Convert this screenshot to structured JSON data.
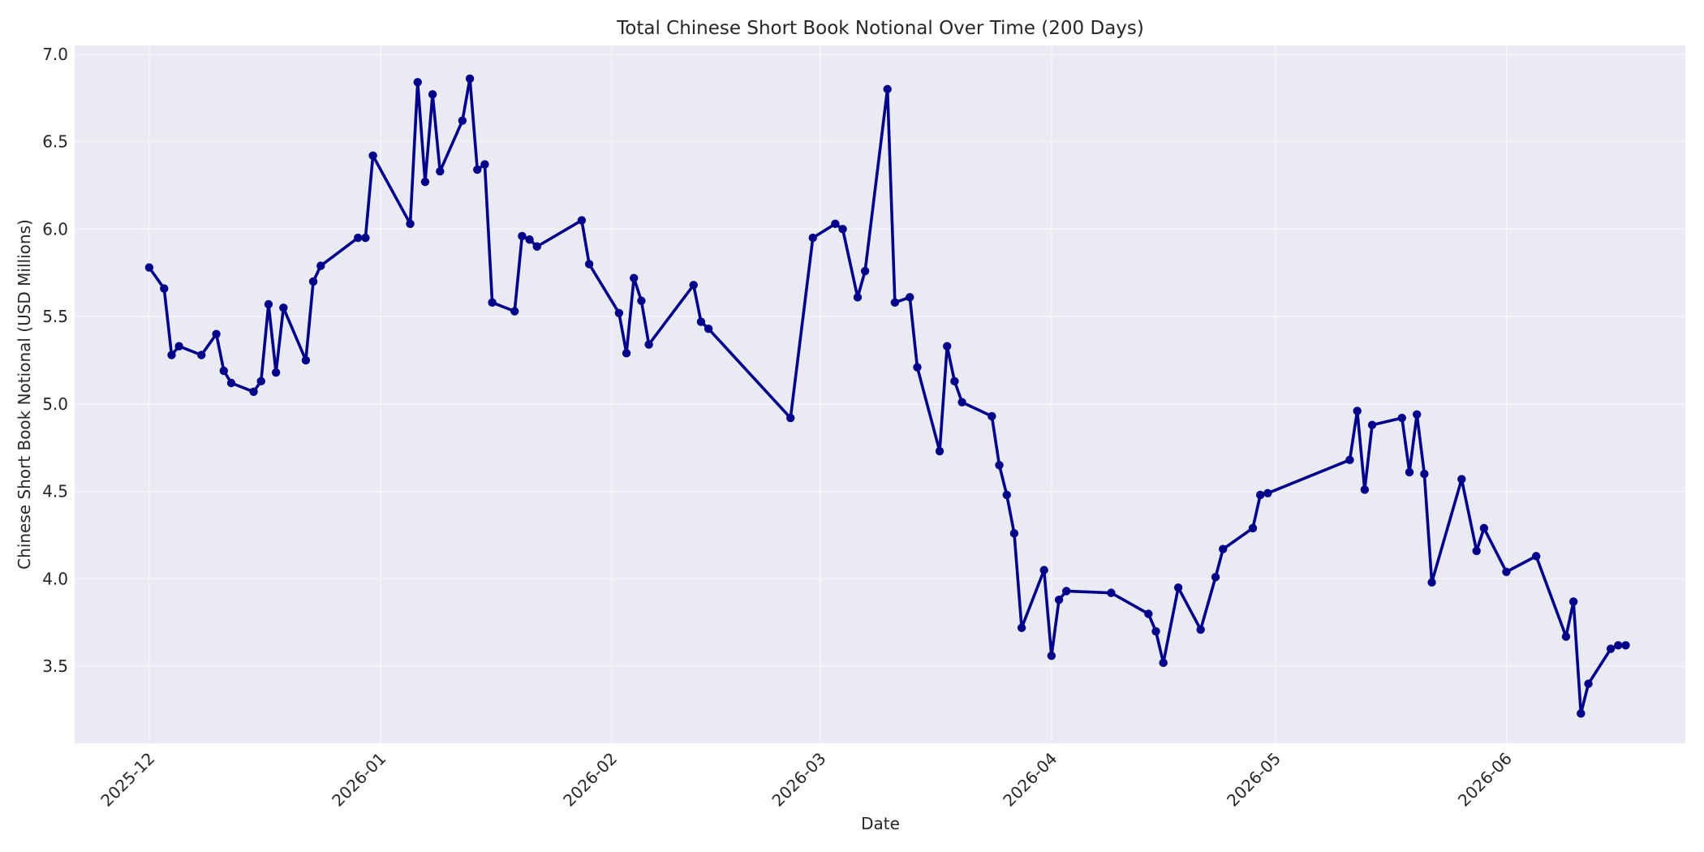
{
  "chart_data": {
    "type": "line",
    "title": "Total Chinese Short Book Notional Over Time (200 Days)",
    "xlabel": "Date",
    "ylabel": "Chinese Short Book Notional (USD Millions)",
    "xlim": [
      "2025-11-21",
      "2026-06-25"
    ],
    "ylim": [
      3.06,
      7.05
    ],
    "yticks": [
      3.5,
      4.0,
      4.5,
      5.0,
      5.5,
      6.0,
      6.5,
      7.0
    ],
    "ytick_labels": [
      "3.5",
      "4.0",
      "4.5",
      "5.0",
      "5.5",
      "6.0",
      "6.5",
      "7.0"
    ],
    "xticks": [
      "2025-12-01",
      "2026-01-01",
      "2026-02-01",
      "2026-03-01",
      "2026-04-01",
      "2026-05-01",
      "2026-06-01"
    ],
    "xtick_labels": [
      "2025-12",
      "2026-01",
      "2026-02",
      "2026-03",
      "2026-04",
      "2026-05",
      "2026-06"
    ],
    "grid": true,
    "series": [
      {
        "color": "#00008b",
        "points": [
          [
            "2025-12-01",
            5.78
          ],
          [
            "2025-12-03",
            5.66
          ],
          [
            "2025-12-04",
            5.28
          ],
          [
            "2025-12-05",
            5.33
          ],
          [
            "2025-12-08",
            5.28
          ],
          [
            "2025-12-10",
            5.4
          ],
          [
            "2025-12-11",
            5.19
          ],
          [
            "2025-12-12",
            5.12
          ],
          [
            "2025-12-15",
            5.07
          ],
          [
            "2025-12-16",
            5.13
          ],
          [
            "2025-12-17",
            5.57
          ],
          [
            "2025-12-18",
            5.18
          ],
          [
            "2025-12-19",
            5.55
          ],
          [
            "2025-12-22",
            5.25
          ],
          [
            "2025-12-23",
            5.7
          ],
          [
            "2025-12-24",
            5.79
          ],
          [
            "2025-12-29",
            5.95
          ],
          [
            "2025-12-30",
            5.95
          ],
          [
            "2025-12-31",
            6.42
          ],
          [
            "2026-01-05",
            6.03
          ],
          [
            "2026-01-06",
            6.84
          ],
          [
            "2026-01-07",
            6.27
          ],
          [
            "2026-01-08",
            6.77
          ],
          [
            "2026-01-09",
            6.33
          ],
          [
            "2026-01-12",
            6.62
          ],
          [
            "2026-01-13",
            6.86
          ],
          [
            "2026-01-14",
            6.34
          ],
          [
            "2026-01-15",
            6.37
          ],
          [
            "2026-01-16",
            5.58
          ],
          [
            "2026-01-19",
            5.53
          ],
          [
            "2026-01-20",
            5.96
          ],
          [
            "2026-01-21",
            5.94
          ],
          [
            "2026-01-22",
            5.9
          ],
          [
            "2026-01-28",
            6.05
          ],
          [
            "2026-01-29",
            5.8
          ],
          [
            "2026-02-02",
            5.52
          ],
          [
            "2026-02-03",
            5.29
          ],
          [
            "2026-02-04",
            5.72
          ],
          [
            "2026-02-05",
            5.59
          ],
          [
            "2026-02-06",
            5.34
          ],
          [
            "2026-02-12",
            5.68
          ],
          [
            "2026-02-13",
            5.47
          ],
          [
            "2026-02-14",
            5.43
          ],
          [
            "2026-02-25",
            4.92
          ],
          [
            "2026-02-28",
            5.95
          ],
          [
            "2026-03-03",
            6.03
          ],
          [
            "2026-03-04",
            6.0
          ],
          [
            "2026-03-06",
            5.61
          ],
          [
            "2026-03-07",
            5.76
          ],
          [
            "2026-03-10",
            6.8
          ],
          [
            "2026-03-11",
            5.58
          ],
          [
            "2026-03-13",
            5.61
          ],
          [
            "2026-03-14",
            5.21
          ],
          [
            "2026-03-17",
            4.73
          ],
          [
            "2026-03-18",
            5.33
          ],
          [
            "2026-03-19",
            5.13
          ],
          [
            "2026-03-20",
            5.01
          ],
          [
            "2026-03-24",
            4.93
          ],
          [
            "2026-03-25",
            4.65
          ],
          [
            "2026-03-26",
            4.48
          ],
          [
            "2026-03-27",
            4.26
          ],
          [
            "2026-03-28",
            3.72
          ],
          [
            "2026-03-31",
            4.05
          ],
          [
            "2026-04-01",
            3.56
          ],
          [
            "2026-04-02",
            3.88
          ],
          [
            "2026-04-03",
            3.93
          ],
          [
            "2026-04-09",
            3.92
          ],
          [
            "2026-04-14",
            3.8
          ],
          [
            "2026-04-15",
            3.7
          ],
          [
            "2026-04-16",
            3.52
          ],
          [
            "2026-04-18",
            3.95
          ],
          [
            "2026-04-21",
            3.71
          ],
          [
            "2026-04-23",
            4.01
          ],
          [
            "2026-04-24",
            4.17
          ],
          [
            "2026-04-28",
            4.29
          ],
          [
            "2026-04-29",
            4.48
          ],
          [
            "2026-04-30",
            4.49
          ],
          [
            "2026-05-11",
            4.68
          ],
          [
            "2026-05-12",
            4.96
          ],
          [
            "2026-05-13",
            4.51
          ],
          [
            "2026-05-14",
            4.88
          ],
          [
            "2026-05-18",
            4.92
          ],
          [
            "2026-05-19",
            4.61
          ],
          [
            "2026-05-20",
            4.94
          ],
          [
            "2026-05-21",
            4.6
          ],
          [
            "2026-05-22",
            3.98
          ],
          [
            "2026-05-26",
            4.57
          ],
          [
            "2026-05-28",
            4.16
          ],
          [
            "2026-05-29",
            4.29
          ],
          [
            "2026-06-01",
            4.04
          ],
          [
            "2026-06-05",
            4.13
          ],
          [
            "2026-06-09",
            3.67
          ],
          [
            "2026-06-10",
            3.87
          ],
          [
            "2026-06-11",
            3.23
          ],
          [
            "2026-06-12",
            3.4
          ],
          [
            "2026-06-15",
            3.6
          ],
          [
            "2026-06-16",
            3.62
          ],
          [
            "2026-06-17",
            3.62
          ]
        ]
      }
    ]
  }
}
